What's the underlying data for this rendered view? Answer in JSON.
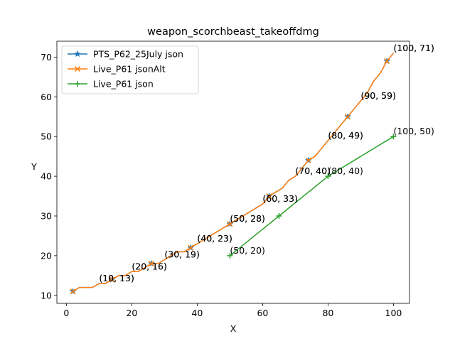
{
  "chart_data": {
    "type": "line",
    "title": "weapon_scorchbeast_takeoffdmg",
    "xlabel": "X",
    "ylabel": "Y",
    "xlim": [
      -2.9,
      104.9
    ],
    "ylim": [
      8.0,
      74.0
    ],
    "xticks": [
      0,
      20,
      40,
      60,
      80,
      100
    ],
    "yticks": [
      10,
      20,
      30,
      40,
      50,
      60,
      70
    ],
    "grid": false,
    "legend_position": "top-left",
    "series": [
      {
        "name": "PTS_P62_25July json",
        "color": "#1f77b4",
        "marker": "star",
        "x": [
          2,
          4,
          6,
          8,
          10,
          12,
          14,
          16,
          18,
          20,
          22,
          24,
          26,
          28,
          30,
          32,
          34,
          36,
          38,
          40,
          42,
          44,
          46,
          48,
          50,
          52,
          54,
          56,
          58,
          60,
          62,
          64,
          66,
          68,
          70,
          72,
          74,
          76,
          78,
          80,
          82,
          84,
          86,
          88,
          90,
          92,
          94,
          96,
          98,
          100
        ],
        "y": [
          11,
          12,
          12,
          12,
          13,
          13,
          14,
          15,
          15,
          16,
          16,
          17,
          18,
          18,
          19,
          20,
          21,
          21,
          22,
          23,
          24,
          25,
          26,
          27,
          28,
          29,
          30,
          31,
          32,
          33,
          35,
          36,
          37,
          39,
          40,
          42,
          44,
          45,
          47,
          49,
          51,
          53,
          55,
          57,
          59,
          61,
          64,
          66,
          69,
          71
        ],
        "marker_every": 6,
        "marker_offset": 0
      },
      {
        "name": "Live_P61 jsonAlt",
        "color": "#ff7f0e",
        "marker": "x",
        "x": [
          2,
          4,
          6,
          8,
          10,
          12,
          14,
          16,
          18,
          20,
          22,
          24,
          26,
          28,
          30,
          32,
          34,
          36,
          38,
          40,
          42,
          44,
          46,
          48,
          50,
          52,
          54,
          56,
          58,
          60,
          62,
          64,
          66,
          68,
          70,
          72,
          74,
          76,
          78,
          80,
          82,
          84,
          86,
          88,
          90,
          92,
          94,
          96,
          98,
          100
        ],
        "y": [
          11,
          12,
          12,
          12,
          13,
          13,
          14,
          15,
          15,
          16,
          16,
          17,
          18,
          18,
          19,
          20,
          21,
          21,
          22,
          23,
          24,
          25,
          26,
          27,
          28,
          29,
          30,
          31,
          32,
          33,
          35,
          36,
          37,
          39,
          40,
          42,
          44,
          45,
          47,
          49,
          51,
          53,
          55,
          57,
          59,
          61,
          64,
          66,
          69,
          71
        ],
        "marker_every": 6,
        "marker_offset": 0
      },
      {
        "name": "Live_P61 json",
        "color": "#2ca02c",
        "marker": "plus",
        "x": [
          50,
          65,
          80,
          100
        ],
        "y": [
          20,
          30,
          40,
          50
        ],
        "marker_every": 1,
        "marker_offset": 0
      }
    ],
    "annotations": [
      {
        "text": "(10, 13)",
        "x": 10,
        "y": 13
      },
      {
        "text": "(10, 13)",
        "x": 10,
        "y": 13
      },
      {
        "text": "(20, 16)",
        "x": 20,
        "y": 16
      },
      {
        "text": "(20, 16)",
        "x": 20,
        "y": 16
      },
      {
        "text": "(30, 19)",
        "x": 30,
        "y": 19
      },
      {
        "text": "(30, 19)",
        "x": 30,
        "y": 19
      },
      {
        "text": "(40, 23)",
        "x": 40,
        "y": 23
      },
      {
        "text": "(40, 23)",
        "x": 40,
        "y": 23
      },
      {
        "text": "(50, 28)",
        "x": 50,
        "y": 28
      },
      {
        "text": "(50, 28)",
        "x": 50,
        "y": 28
      },
      {
        "text": "(60, 33)",
        "x": 60,
        "y": 33
      },
      {
        "text": "(60, 33)",
        "x": 60,
        "y": 33
      },
      {
        "text": "(70, 40)",
        "x": 70,
        "y": 40
      },
      {
        "text": "(70, 40)",
        "x": 70,
        "y": 40
      },
      {
        "text": "(80, 49)",
        "x": 80,
        "y": 49
      },
      {
        "text": "(80, 49)",
        "x": 80,
        "y": 49
      },
      {
        "text": "(90, 59)",
        "x": 90,
        "y": 59
      },
      {
        "text": "(90, 59)",
        "x": 90,
        "y": 59
      },
      {
        "text": "(100, 71)",
        "x": 100,
        "y": 71
      },
      {
        "text": "(100, 71)",
        "x": 100,
        "y": 71
      },
      {
        "text": "(50, 20)",
        "x": 50,
        "y": 20
      },
      {
        "text": "(80, 40)",
        "x": 80,
        "y": 40
      },
      {
        "text": "(100, 50)",
        "x": 100,
        "y": 50
      }
    ]
  }
}
